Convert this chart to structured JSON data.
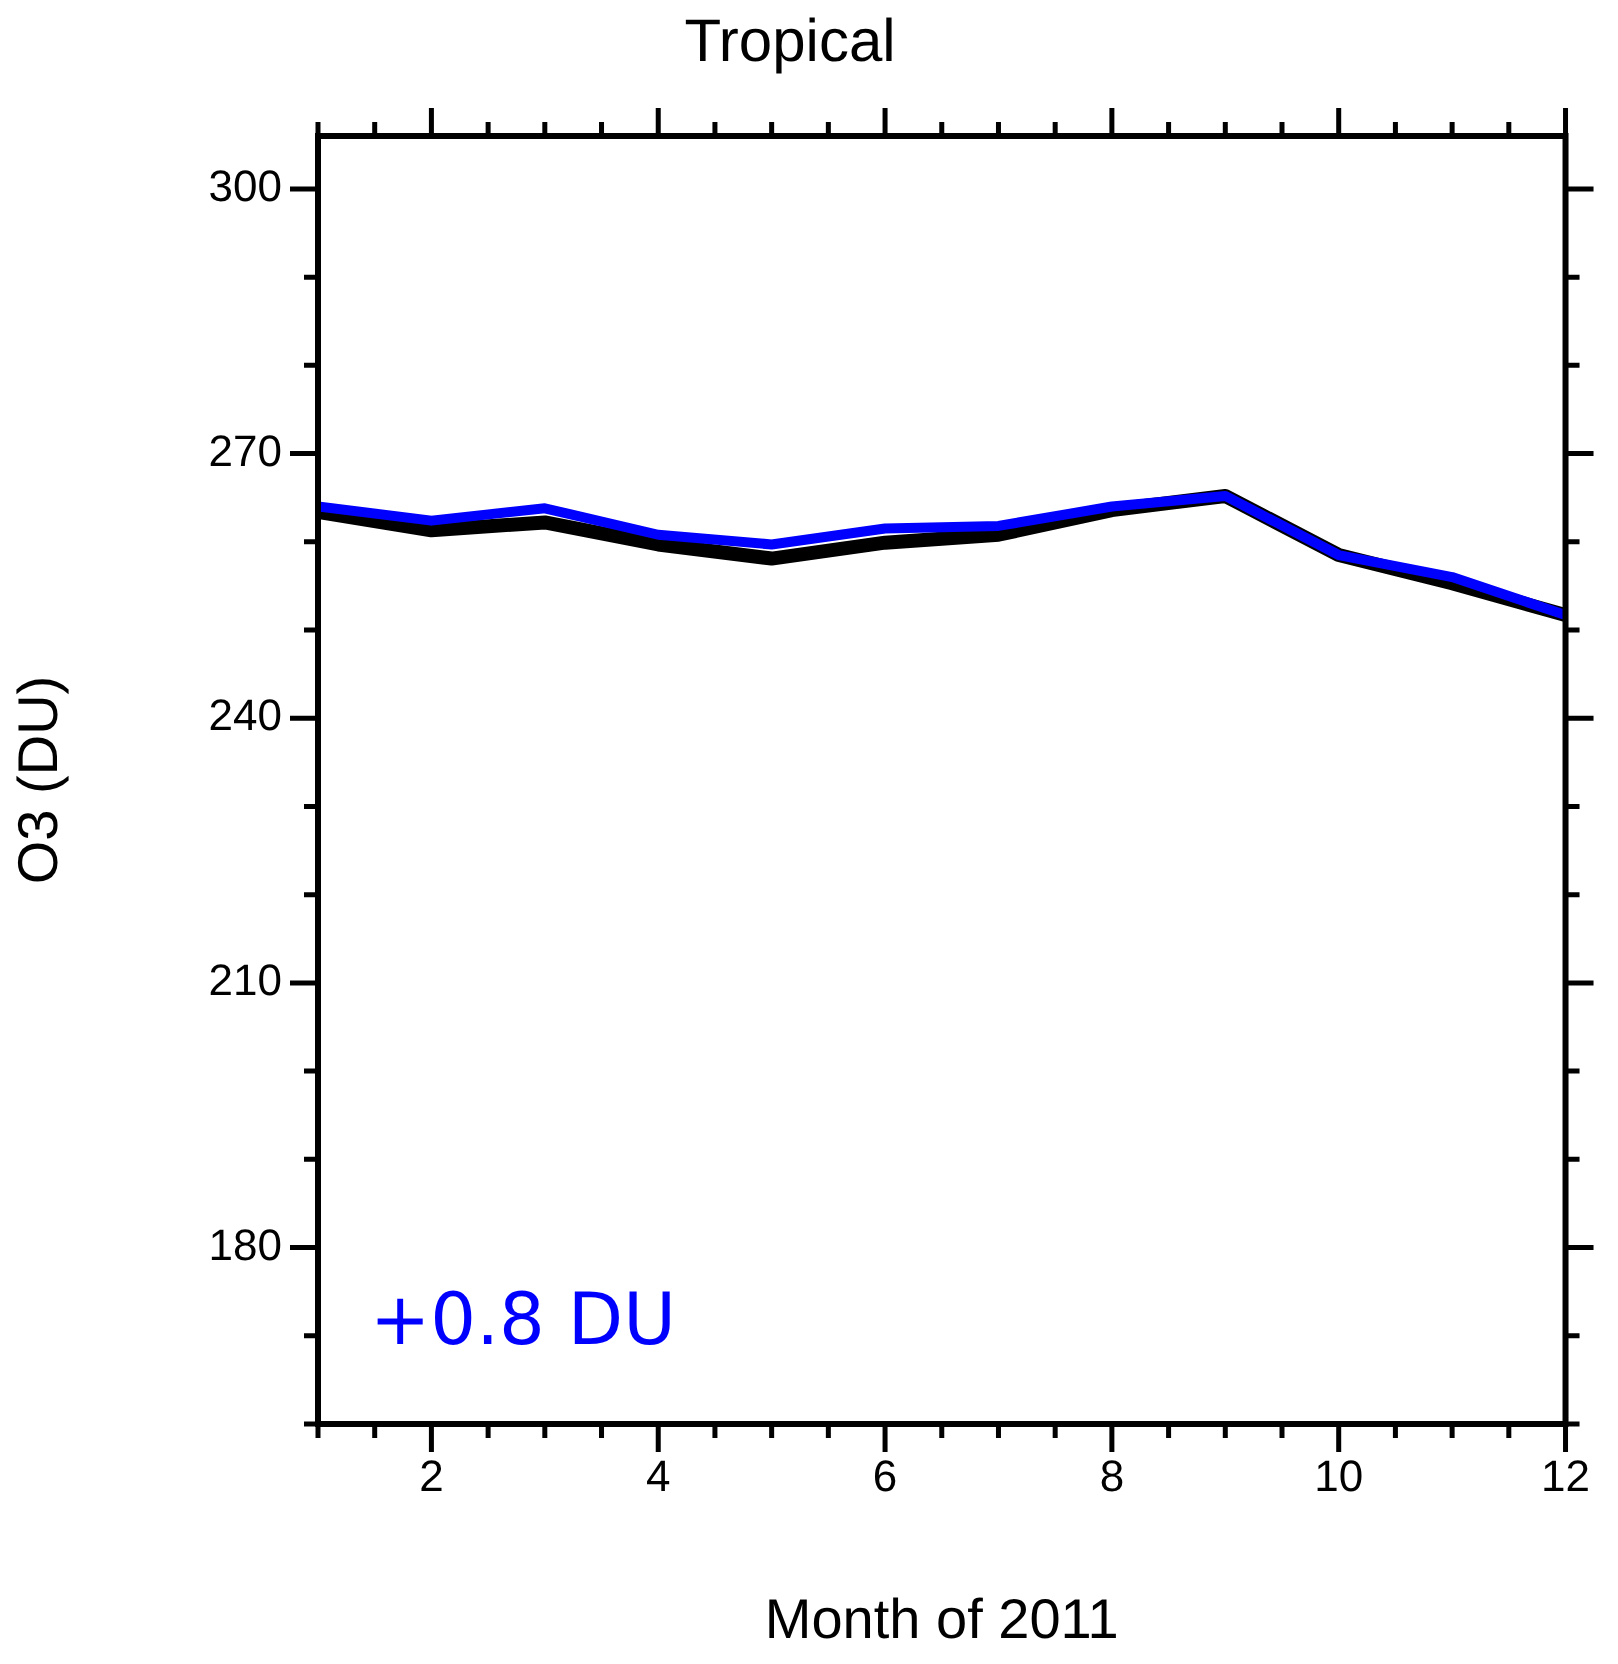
{
  "chart_data": {
    "type": "line",
    "title": "Tropical",
    "xlabel": "Month of 2011",
    "ylabel": "O3 (DU)",
    "x": [
      1,
      2,
      3,
      4,
      5,
      6,
      7,
      8,
      9,
      10,
      11,
      12
    ],
    "series": [
      {
        "color": "#000000",
        "values": [
          263.4,
          261.3,
          262.2,
          259.7,
          258.1,
          259.9,
          260.8,
          263.6,
          265.2,
          258.5,
          255.3,
          251.7
        ]
      },
      {
        "color": "#0000ff",
        "values": [
          264.0,
          262.4,
          263.8,
          260.8,
          259.7,
          261.5,
          261.8,
          264.0,
          265.2,
          258.5,
          256.0,
          251.7
        ]
      }
    ],
    "xlim": [
      1,
      12
    ],
    "ylim": [
      160,
      306
    ],
    "xticks": [
      {
        "value": 1,
        "label": null
      },
      {
        "value": 1.5,
        "label": null
      },
      2,
      {
        "value": 2.5,
        "label": null
      },
      {
        "value": 3,
        "label": null
      },
      {
        "value": 3.5,
        "label": null
      },
      4,
      {
        "value": 4.5,
        "label": null
      },
      {
        "value": 5,
        "label": null
      },
      {
        "value": 5.5,
        "label": null
      },
      6,
      {
        "value": 6.5,
        "label": null
      },
      {
        "value": 7,
        "label": null
      },
      {
        "value": 7.5,
        "label": null
      },
      8,
      {
        "value": 8.5,
        "label": null
      },
      {
        "value": 9,
        "label": null
      },
      {
        "value": 9.5,
        "label": null
      },
      10,
      {
        "value": 10.5,
        "label": null
      },
      {
        "value": 11,
        "label": null
      },
      {
        "value": 11.5,
        "label": null
      },
      12
    ],
    "yticks": [
      {
        "value": 160,
        "label": null
      },
      {
        "value": 170,
        "label": null
      },
      180,
      {
        "value": 190,
        "label": null
      },
      {
        "value": 200,
        "label": null
      },
      210,
      {
        "value": 220,
        "label": null
      },
      {
        "value": 230,
        "label": null
      },
      240,
      {
        "value": 250,
        "label": null
      },
      {
        "value": 260,
        "label": null
      },
      270,
      {
        "value": 280,
        "label": null
      },
      {
        "value": 290,
        "label": null
      },
      300
    ],
    "annotations": [
      "+0.8 DU"
    ],
    "grid": false,
    "legend": false,
    "marker": "none",
    "line_style": "solid"
  }
}
